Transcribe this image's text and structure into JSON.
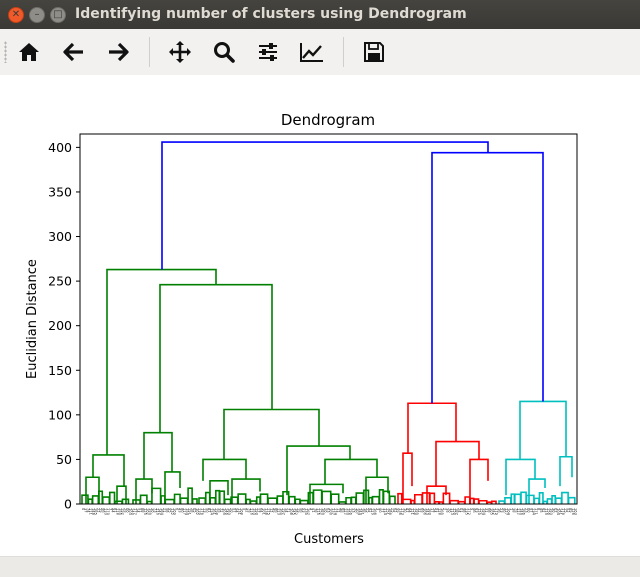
{
  "window": {
    "title": "Identifying number of clusters using Dendrogram",
    "controls": [
      "close-icon",
      "minimize-icon",
      "maximize-icon"
    ]
  },
  "toolbar": {
    "buttons": [
      {
        "name": "home",
        "icon": "home-icon"
      },
      {
        "name": "back",
        "icon": "arrow-left-icon"
      },
      {
        "name": "forward",
        "icon": "arrow-right-icon"
      },
      {
        "name": "pan",
        "icon": "move-icon"
      },
      {
        "name": "zoom",
        "icon": "zoom-icon"
      },
      {
        "name": "configure-subplots",
        "icon": "sliders-icon"
      },
      {
        "name": "edit-axis",
        "icon": "line-chart-icon"
      },
      {
        "name": "save",
        "icon": "save-icon"
      }
    ]
  },
  "chart_data": {
    "type": "dendrogram",
    "title": "Dendrogram",
    "xlabel": "Customers",
    "ylabel": "Euclidian Distance",
    "ylim": [
      0,
      415
    ],
    "yticks": [
      0,
      50,
      100,
      150,
      200,
      250,
      300,
      350,
      400
    ],
    "grid": false,
    "colors": {
      "green": "#008000",
      "red": "#ff0000",
      "cyan": "#00bfbf",
      "blue": "#0000ff"
    },
    "root_height": 406,
    "clusters": [
      {
        "color": "green",
        "merge_height": 263,
        "subclusters": [
          {
            "merge_height": 55,
            "leaves": "left group"
          },
          {
            "merge_height": 246,
            "subheights": [
              80,
              106,
              65,
              50
            ]
          }
        ]
      },
      {
        "color": "red",
        "merge_height": 113,
        "subheights": [
          57,
          70,
          50
        ]
      },
      {
        "color": "cyan",
        "merge_height": 115,
        "subheights": [
          50,
          53
        ]
      }
    ],
    "upper_merge_heights": [
      263,
      394,
      406
    ],
    "leaf_count": 200
  }
}
